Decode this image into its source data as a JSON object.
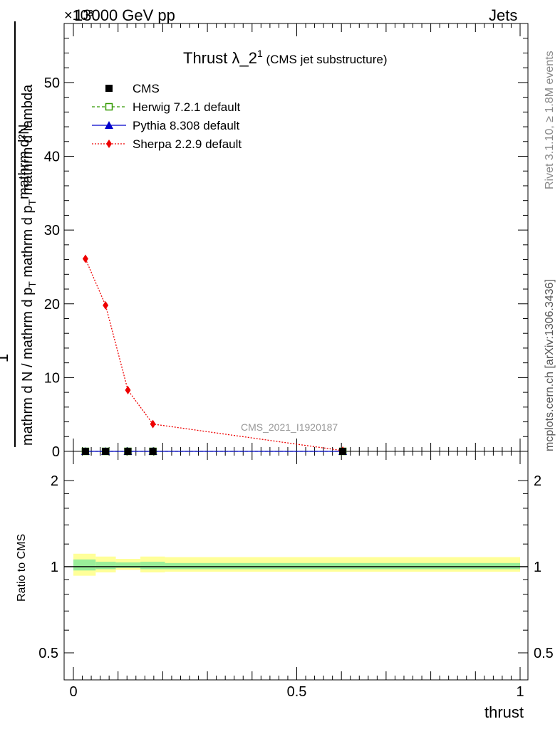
{
  "header": {
    "left": "13000 GeV pp",
    "right": "Jets",
    "exponent": "×10³"
  },
  "side": {
    "rivet": "Rivet 3.1.10, ≥ 1.8M events",
    "mcplots": "mcplots.cern.ch [arXiv:1306.3436]"
  },
  "chart_data": {
    "type": "line",
    "title": "Thrust λ_2",
    "title_sup": "1",
    "subtitle": "(CMS jet substructure)",
    "watermark": "CMS_2021_I1920187",
    "ylabel": {
      "numerator": "mathrm d²N",
      "numerator_one": "1",
      "denominator": "mathrm d N / mathrm d p",
      "denominator_tail": "mathrm d p",
      "denominator_end": "mathrm d lambda",
      "subscript": "T"
    },
    "xlabel": "thrust",
    "xlim": [
      0,
      1
    ],
    "ylim": [
      0,
      58
    ],
    "y_scale_note": "×10³",
    "xticks": [
      "0",
      "0.5",
      "1"
    ],
    "yticks": [
      "0",
      "10",
      "20",
      "30",
      "40",
      "50"
    ],
    "legend_position": "top-left",
    "x": [
      0.027,
      0.072,
      0.122,
      0.178,
      0.603
    ],
    "series": [
      {
        "name": "CMS",
        "color": "#000000",
        "marker": "square",
        "values": [
          0,
          0,
          0,
          0,
          0
        ]
      },
      {
        "name": "Herwig 7.2.1 default",
        "color": "#339900",
        "marker": "open-square",
        "line": "dashed",
        "values": [
          0,
          0,
          0,
          0,
          0
        ]
      },
      {
        "name": "Pythia 8.308 default",
        "color": "#0000cc",
        "marker": "triangle",
        "line": "solid",
        "values": [
          0,
          0,
          0,
          0,
          0
        ]
      },
      {
        "name": "Sherpa 2.2.9 default",
        "color": "#ee0000",
        "marker": "diamond",
        "line": "dotted",
        "values": [
          26.1,
          19.8,
          8.3,
          3.7,
          0.1
        ]
      }
    ],
    "ratio": {
      "ylabel": "Ratio to CMS",
      "ylim": [
        0.4,
        2.3
      ],
      "yticks": [
        "0.5",
        "1",
        "2"
      ],
      "bands": [
        {
          "xmin": 0.0,
          "xmax": 0.05,
          "yellow": [
            0.93,
            1.11
          ],
          "green": [
            0.97,
            1.06
          ]
        },
        {
          "xmin": 0.05,
          "xmax": 0.095,
          "yellow": [
            0.955,
            1.085
          ],
          "green": [
            0.98,
            1.04
          ]
        },
        {
          "xmin": 0.095,
          "xmax": 0.15,
          "yellow": [
            0.975,
            1.065
          ],
          "green": [
            0.99,
            1.035
          ]
        },
        {
          "xmin": 0.15,
          "xmax": 0.205,
          "yellow": [
            0.955,
            1.085
          ],
          "green": [
            0.98,
            1.04
          ]
        },
        {
          "xmin": 0.205,
          "xmax": 1.0,
          "yellow": [
            0.96,
            1.08
          ],
          "green": [
            0.98,
            1.03
          ]
        }
      ]
    }
  }
}
